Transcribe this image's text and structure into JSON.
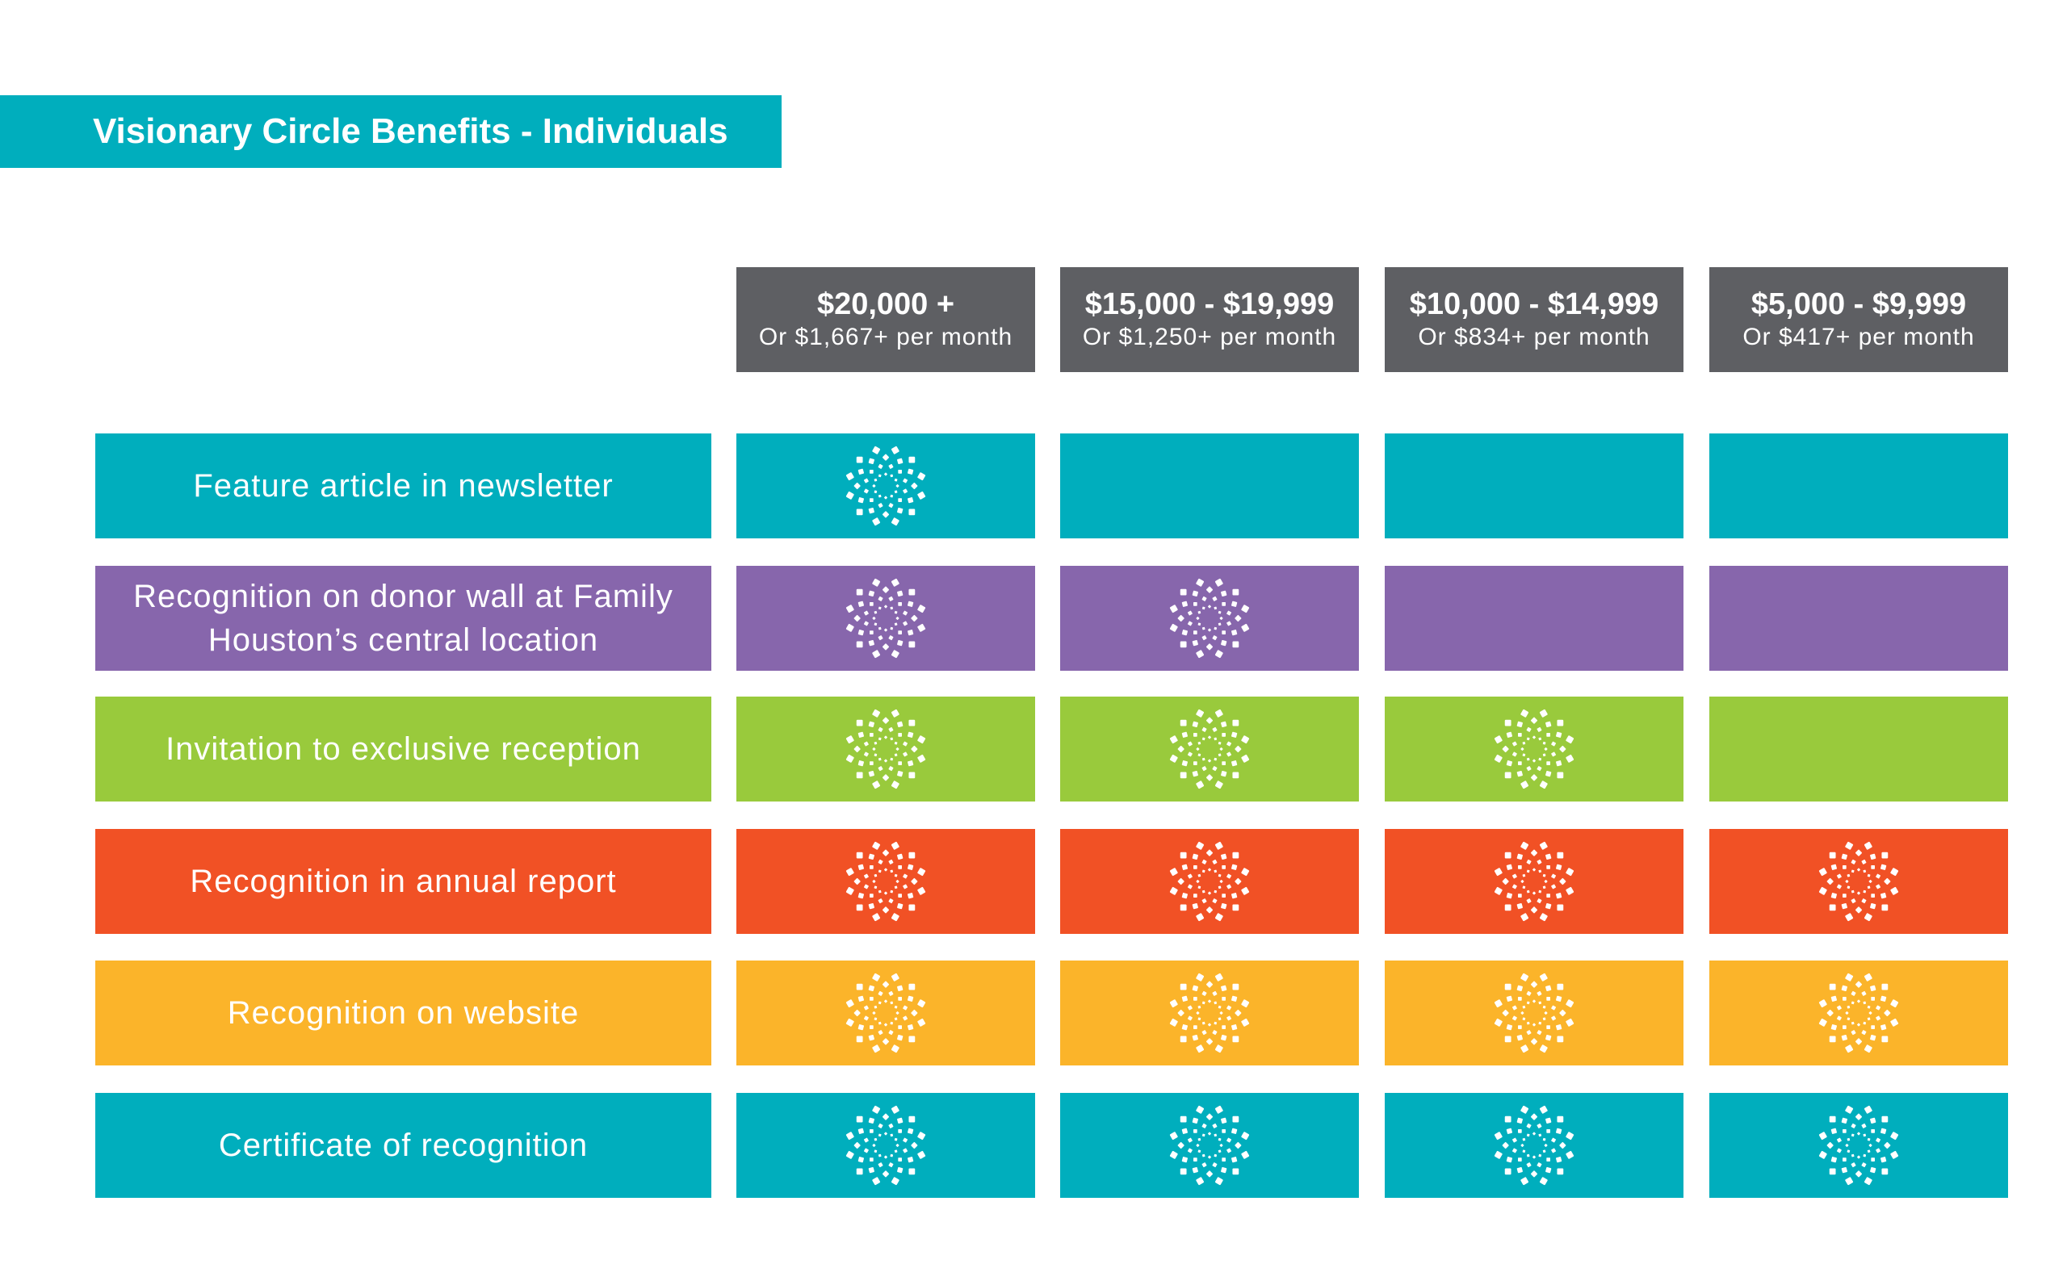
{
  "title": "Visionary Circle Benefits - Individuals",
  "tiers": [
    {
      "amount": "$20,000 +",
      "monthly": "Or $1,667+ per month"
    },
    {
      "amount": "$15,000 - $19,999",
      "monthly": "Or $1,250+ per month"
    },
    {
      "amount": "$10,000 - $14,999",
      "monthly": "Or $834+ per month"
    },
    {
      "amount": "$5,000 - $9,999",
      "monthly": "Or $417+ per month"
    }
  ],
  "benefits": [
    {
      "label": "Feature article in newsletter",
      "color": "#00aebd",
      "included": [
        true,
        false,
        false,
        false
      ]
    },
    {
      "label": "Recognition on donor wall at Family Houston’s central location",
      "color": "#8766ac",
      "included": [
        true,
        true,
        false,
        false
      ]
    },
    {
      "label": "Invitation to exclusive reception",
      "color": "#99ca3c",
      "included": [
        true,
        true,
        true,
        false
      ]
    },
    {
      "label": "Recognition in annual report",
      "color": "#f15125",
      "included": [
        true,
        true,
        true,
        true
      ]
    },
    {
      "label": "Recognition on website",
      "color": "#fbb42a",
      "included": [
        true,
        true,
        true,
        true
      ]
    },
    {
      "label": "Certificate of recognition",
      "color": "#00aebd",
      "included": [
        true,
        true,
        true,
        true
      ]
    }
  ],
  "header_color": "#5e5f63",
  "icon": "flower-burst-icon"
}
